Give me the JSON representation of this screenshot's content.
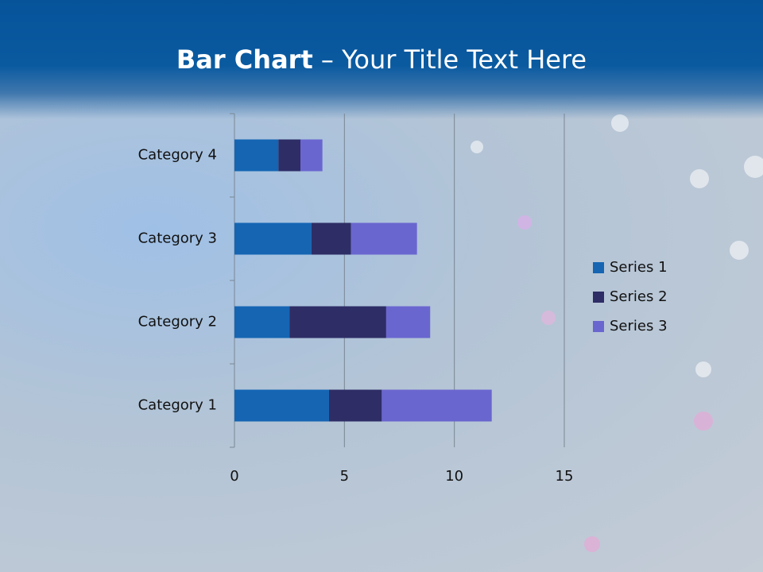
{
  "slide": {
    "title": {
      "bold": "Bar Chart",
      "rest": "– Your Title Text Here"
    }
  },
  "chart_data": {
    "type": "bar",
    "orientation": "horizontal",
    "stacked": true,
    "categories": [
      "Category 1",
      "Category 2",
      "Category 3",
      "Category 4"
    ],
    "series": [
      {
        "name": "Series 1",
        "color": "#1565b3",
        "values": [
          4.3,
          2.5,
          3.5,
          2
        ]
      },
      {
        "name": "Series 2",
        "color": "#2e2d66",
        "values": [
          2.4,
          4.4,
          1.8,
          1
        ]
      },
      {
        "name": "Series 3",
        "color": "#6a66cf",
        "values": [
          5,
          2,
          3,
          1
        ]
      }
    ],
    "xlim": [
      0,
      15
    ],
    "xticks": [
      0,
      5,
      10,
      15
    ],
    "grid": true,
    "legend": "right"
  }
}
